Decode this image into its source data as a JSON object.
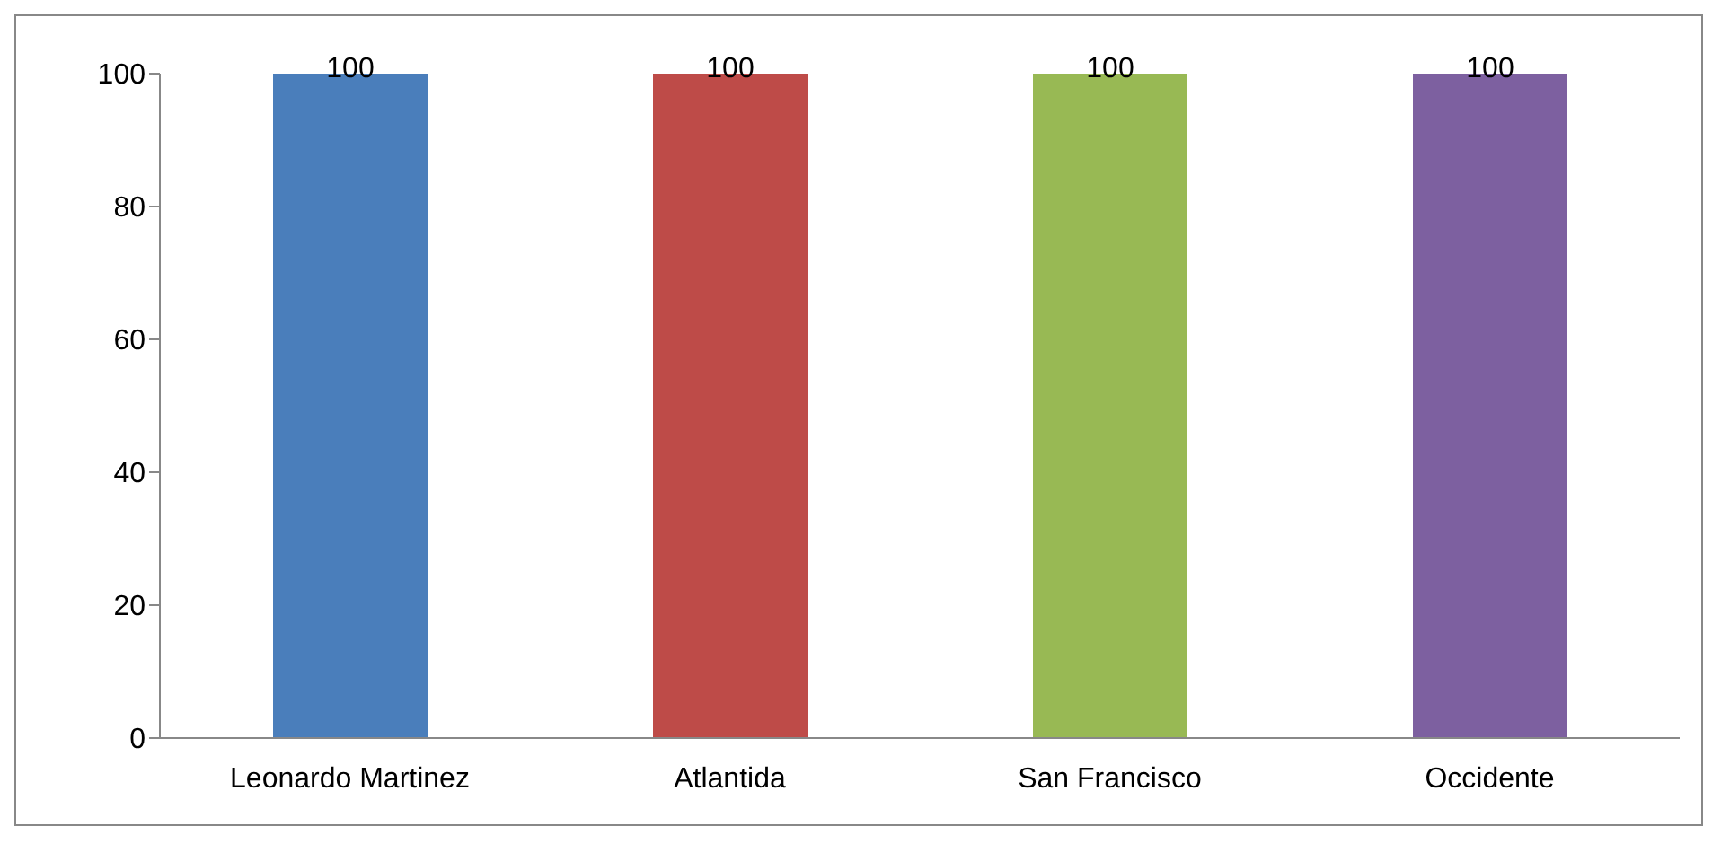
{
  "chart_data": {
    "type": "bar",
    "categories": [
      "Leonardo Martinez",
      "Atlantida",
      "San Francisco",
      "Occidente"
    ],
    "values": [
      100,
      100,
      100,
      100
    ],
    "colors": [
      "#4a7ebb",
      "#be4b48",
      "#98b954",
      "#7d60a0"
    ],
    "ylim": [
      0,
      100
    ],
    "yticks": [
      0,
      20,
      40,
      60,
      80,
      100
    ],
    "data_labels": true,
    "grid": false
  }
}
